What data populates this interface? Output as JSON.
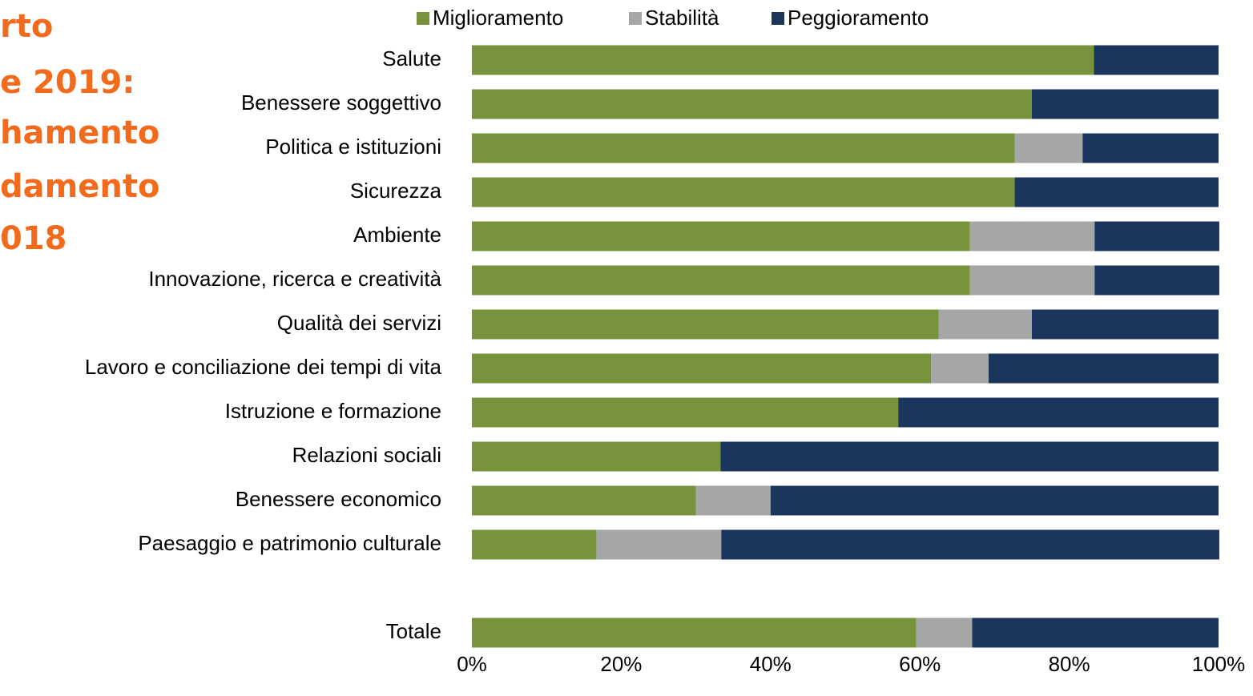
{
  "chart_data": {
    "type": "stacked-bar-horizontal",
    "title_lines": [
      "rto",
      "e 2019:",
      "hamento",
      "damento",
      "018"
    ],
    "categories": [
      "Salute",
      "Benessere soggettivo",
      "Politica e istituzioni",
      "Sicurezza",
      "Ambiente",
      "Innovazione, ricerca e creatività",
      "Qualità dei servizi",
      "Lavoro e conciliazione dei tempi di vita",
      "Istruzione e formazione",
      "Relazioni sociali",
      "Benessere economico",
      "Paesaggio e patrimonio culturale",
      null,
      "Totale"
    ],
    "series": [
      {
        "name": "Miglioramento",
        "color": "#77933c",
        "values": [
          83.3,
          75,
          72.7,
          72.7,
          66.7,
          66.7,
          62.5,
          61.5,
          57.1,
          33.3,
          30,
          16.7,
          null,
          59.5
        ]
      },
      {
        "name": "Stabilità",
        "color": "#a6a6a6",
        "values": [
          0,
          0,
          9.1,
          0,
          16.7,
          16.7,
          12.5,
          7.7,
          0,
          0,
          10,
          16.7,
          null,
          7.5
        ]
      },
      {
        "name": "Peggioramento",
        "color": "#1b365d",
        "values": [
          16.7,
          25,
          18.2,
          27.3,
          16.7,
          16.7,
          25,
          30.8,
          42.9,
          66.7,
          60,
          66.7,
          null,
          33
        ]
      }
    ],
    "xlim": [
      0,
      100
    ],
    "xticks": [
      {
        "value": 0,
        "label": "0%"
      },
      {
        "value": 20,
        "label": "20%"
      },
      {
        "value": 40,
        "label": "40%"
      },
      {
        "value": 60,
        "label": "60%"
      },
      {
        "value": 80,
        "label": "80%"
      },
      {
        "value": 100,
        "label": "100%"
      }
    ],
    "legend": "top",
    "title_color": "#f26b1d"
  }
}
